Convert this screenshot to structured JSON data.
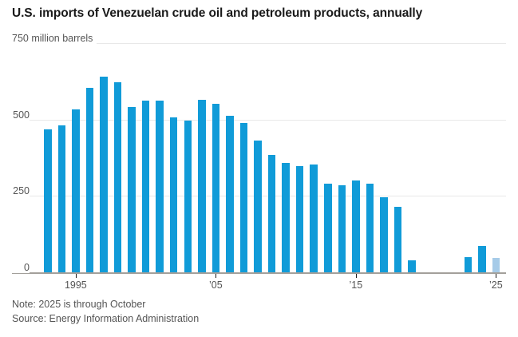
{
  "header": {
    "title": "U.S. imports of Venezuelan crude oil and petroleum products, annually"
  },
  "chart_data": {
    "type": "bar",
    "title": "U.S. imports of Venezuelan crude oil and petroleum products, annually",
    "unit_label": "750 million barrels",
    "ylabel": "million barrels",
    "xlabel": "",
    "ylim": [
      0,
      750
    ],
    "grid": true,
    "years": [
      1993,
      1994,
      1995,
      1996,
      1997,
      1998,
      1999,
      2000,
      2001,
      2002,
      2003,
      2004,
      2005,
      2006,
      2007,
      2008,
      2009,
      2010,
      2011,
      2012,
      2013,
      2014,
      2015,
      2016,
      2017,
      2018,
      2019,
      2020,
      2021,
      2022,
      2023,
      2024,
      2025
    ],
    "values": [
      469,
      482,
      533,
      604,
      641,
      622,
      541,
      561,
      561,
      506,
      496,
      565,
      552,
      511,
      489,
      431,
      384,
      358,
      347,
      352,
      290,
      286,
      300,
      289,
      245,
      213,
      38,
      0,
      0,
      0,
      49,
      87,
      47
    ],
    "highlight_year": 2025,
    "y_ticks": [
      {
        "value": 750,
        "label": "750 million barrels"
      },
      {
        "value": 500,
        "label": "500"
      },
      {
        "value": 250,
        "label": "250"
      },
      {
        "value": 0,
        "label": "0"
      }
    ],
    "x_ticks": [
      {
        "year": 1995,
        "label": "1995"
      },
      {
        "year": 2005,
        "label": "’05"
      },
      {
        "year": 2015,
        "label": "’15"
      },
      {
        "year": 2025,
        "label": "’25"
      }
    ]
  },
  "colors": {
    "bar": "#109bd8",
    "bar_highlight": "#a6cbe8",
    "gridline": "#e8e8e8",
    "axis": "#a3a09b",
    "tick": "#1a1a1a",
    "text_gray": "#555555",
    "title": "#1a1a1a"
  },
  "footer": {
    "note": "Note: 2025 is through October",
    "source": "Source: Energy Information Administration"
  }
}
